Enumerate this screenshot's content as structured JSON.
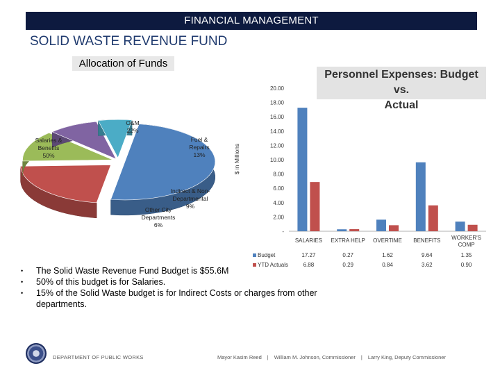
{
  "header": {
    "banner": "FINANCIAL MANAGEMENT",
    "section_title": "SOLID WASTE REVENUE FUND",
    "allocation_title": "Allocation of Funds",
    "personnel_title_line1": "Personnel Expenses: Budget vs.",
    "personnel_title_line2": "Actual"
  },
  "chart_data": [
    {
      "type": "pie",
      "title": "Allocation of Funds",
      "slices": [
        {
          "label_line1": "Salaries &",
          "label_line2": "Benefits",
          "pct_label": "50%",
          "value": 50,
          "color": "#4f81bd"
        },
        {
          "label_line1": "O&M",
          "label_line2": "",
          "pct_label": "22%",
          "value": 22,
          "color": "#c0504d"
        },
        {
          "label_line1": "Fuel &",
          "label_line2": "Repairs",
          "pct_label": "13%",
          "value": 13,
          "color": "#9bbb59"
        },
        {
          "label_line1": "Indirect & Non-",
          "label_line2": "Departmental",
          "pct_label": "9%",
          "value": 9,
          "color": "#8064a2"
        },
        {
          "label_line1": "Other City",
          "label_line2": "Departments",
          "pct_label": "6%",
          "value": 6,
          "color": "#4bacc6"
        }
      ]
    },
    {
      "type": "bar",
      "title": "Personnel Expenses: Budget vs. Actual",
      "ylabel": "$ in Millions",
      "ylim": [
        0,
        20
      ],
      "yticks": [
        "-",
        "2.00",
        "4.00",
        "6.00",
        "8.00",
        "10.00",
        "12.00",
        "14.00",
        "16.00",
        "18.00",
        "20.00"
      ],
      "categories": [
        "SALARIES",
        "EXTRA HELP",
        "OVERTIME",
        "BENEFITS",
        "WORKER'S COMP"
      ],
      "series": [
        {
          "name": "Budget",
          "values": [
            17.27,
            0.27,
            1.62,
            9.64,
            1.35
          ],
          "labels": [
            "17.27",
            "0.27",
            "1.62",
            "9.64",
            "1.35"
          ],
          "color": "#4f81bd"
        },
        {
          "name": "YTD Actuals",
          "values": [
            6.88,
            0.29,
            0.84,
            3.62,
            0.9
          ],
          "labels": [
            "6.88",
            "0.29",
            "0.84",
            "3.62",
            "0.90"
          ],
          "color": "#c0504d"
        }
      ]
    }
  ],
  "bullets": [
    {
      "line1": "The Solid Waste Revenue Fund Budget is $55.6M",
      "line2": ""
    },
    {
      "line1": "50% of this budget is for Salaries.",
      "line2": ""
    },
    {
      "line1": "15% of the Solid Waste budget is for Indirect Costs or charges from other",
      "line2": "departments."
    }
  ],
  "footer": {
    "department": "DEPARTMENT OF PUBLIC WORKS",
    "mayor": "Mayor Kasim Reed",
    "commissioner": "William M. Johnson, Commissioner",
    "deputy": "Larry King, Deputy Commissioner",
    "separator": "|"
  }
}
